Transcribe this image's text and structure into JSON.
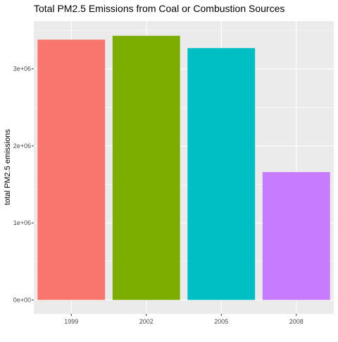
{
  "chart_data": {
    "type": "bar",
    "title": "Total PM2.5 Emissions from Coal or Combustion Sources",
    "xlabel": "",
    "ylabel": "total PM2.5 emissions",
    "categories": [
      "1999",
      "2002",
      "2005",
      "2008"
    ],
    "values": [
      3380000,
      3430000,
      3270000,
      1660000
    ],
    "colors": [
      "#F8766D",
      "#7CAE00",
      "#00BFC4",
      "#C77CFF"
    ],
    "ylim": [
      0,
      3600000
    ],
    "y_ticks": [
      0,
      1000000,
      2000000,
      3000000
    ],
    "y_tick_labels": [
      "0e+00",
      "1e+06",
      "2e+06",
      "3e+06"
    ],
    "grid": true,
    "legend": "none",
    "panel_background": "#EBEBEB",
    "grid_color": "#FFFFFF"
  }
}
